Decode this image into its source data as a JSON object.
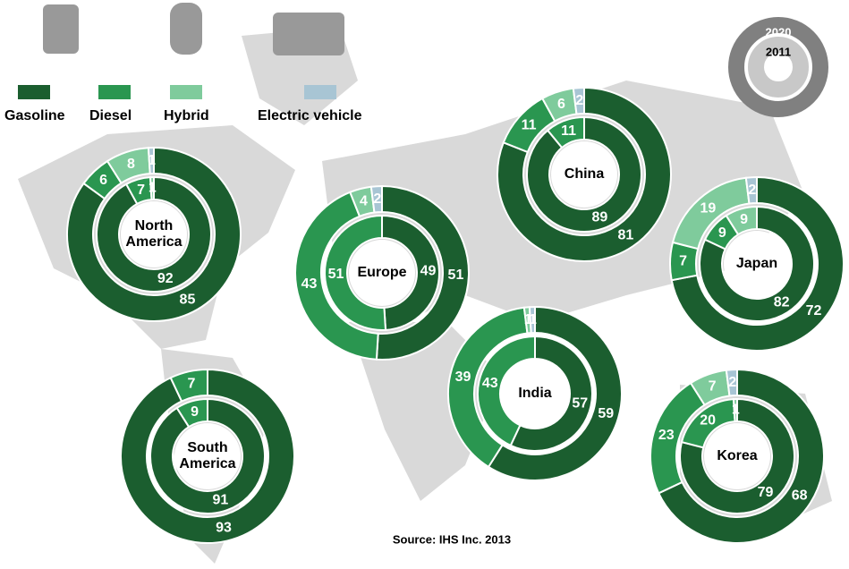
{
  "legend": {
    "categories": [
      "Gasoline",
      "Diesel",
      "Hybrid",
      "Electric vehicle"
    ],
    "colors": [
      "#1b5e2f",
      "#2a9650",
      "#7fcb9c",
      "#a8c5d4"
    ]
  },
  "key": {
    "outer": "2020",
    "inner": "2011",
    "color": "#808080"
  },
  "source": "Source: IHS Inc. 2013",
  "chart_data": [
    {
      "type": "donut",
      "title": "North America",
      "series": [
        {
          "name": "2020",
          "values": [
            85,
            6,
            8,
            1
          ]
        },
        {
          "name": "2011",
          "values": [
            92,
            7,
            1,
            null
          ]
        }
      ]
    },
    {
      "type": "donut",
      "title": "Europe",
      "series": [
        {
          "name": "2020",
          "values": [
            51,
            43,
            4,
            2
          ]
        },
        {
          "name": "2011",
          "values": [
            49,
            51,
            null,
            null
          ]
        }
      ]
    },
    {
      "type": "donut",
      "title": "China",
      "series": [
        {
          "name": "2020",
          "values": [
            81,
            11,
            6,
            2
          ]
        },
        {
          "name": "2011",
          "values": [
            89,
            11,
            null,
            null
          ]
        }
      ]
    },
    {
      "type": "donut",
      "title": "Japan",
      "series": [
        {
          "name": "2020",
          "values": [
            72,
            7,
            19,
            2
          ]
        },
        {
          "name": "2011",
          "values": [
            82,
            9,
            9,
            null
          ]
        }
      ]
    },
    {
      "type": "donut",
      "title": "India",
      "series": [
        {
          "name": "2020",
          "values": [
            59,
            39,
            1,
            1
          ]
        },
        {
          "name": "2011",
          "values": [
            57,
            43,
            null,
            null
          ]
        }
      ]
    },
    {
      "type": "donut",
      "title": "South America",
      "series": [
        {
          "name": "2020",
          "values": [
            93,
            7,
            null,
            null
          ]
        },
        {
          "name": "2011",
          "values": [
            91,
            9,
            null,
            null
          ]
        }
      ]
    },
    {
      "type": "donut",
      "title": "Korea",
      "series": [
        {
          "name": "2020",
          "values": [
            68,
            23,
            7,
            2
          ]
        },
        {
          "name": "2011",
          "values": [
            79,
            20,
            1,
            null
          ]
        }
      ]
    }
  ]
}
